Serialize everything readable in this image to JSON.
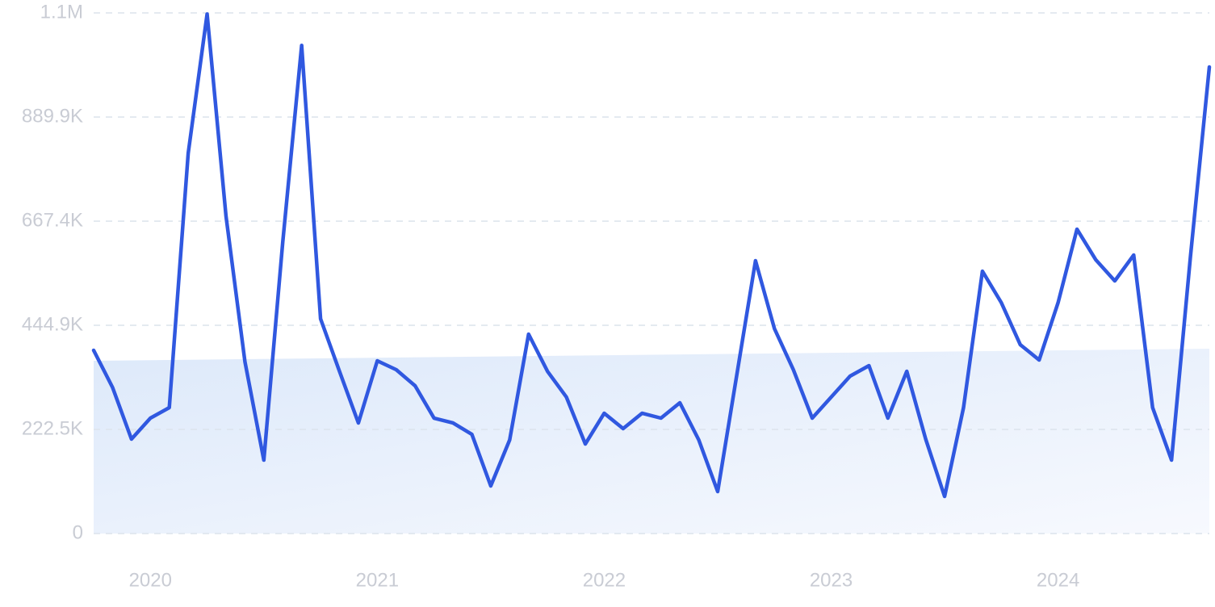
{
  "chart_data": {
    "type": "line",
    "categories": [
      null,
      null,
      null,
      "2020",
      null,
      null,
      null,
      null,
      null,
      null,
      null,
      null,
      null,
      null,
      null,
      "2021",
      null,
      null,
      null,
      null,
      null,
      null,
      null,
      null,
      null,
      null,
      null,
      "2022",
      null,
      null,
      null,
      null,
      null,
      null,
      null,
      null,
      null,
      null,
      null,
      "2023",
      null,
      null,
      null,
      null,
      null,
      null,
      null,
      null,
      null,
      null,
      null,
      "2024",
      null,
      null,
      null,
      null,
      null,
      null,
      null,
      null
    ],
    "series": [
      {
        "color": "#3058e0",
        "values": [
          391500,
          312200,
          201800,
          246600,
          269000,
          812300,
          1110000,
          677800,
          367300,
          156900,
          622600,
          1043000,
          458700,
          346600,
          236300,
          369100,
          350100,
          315600,
          246600,
          236300,
          212100,
          101700,
          200100,
          426000,
          346600,
          291500,
          191400,
          257000,
          224200,
          257000,
          246600,
          279400,
          200100,
          89700,
          336300,
          582900,
          438000,
          350100,
          246600,
          291500,
          336300,
          358700,
          246600,
          346600,
          201800,
          79300,
          269000,
          560500,
          493200,
          403600,
          370800,
          493200,
          650200,
          584600,
          539800,
          595000,
          269000,
          156900,
          591500,
          996800
        ]
      }
    ],
    "ylim": [
      0,
      1112350
    ],
    "yticks": [
      0,
      {
        "value": 222470,
        "label": "222.5K"
      },
      {
        "value": 444940,
        "label": "444.9K"
      },
      {
        "value": 667410,
        "label": "667.4K"
      },
      {
        "value": 889880,
        "label": "889.9K"
      },
      {
        "value": 1112350,
        "label": "1.1M"
      }
    ],
    "grid": true
  }
}
